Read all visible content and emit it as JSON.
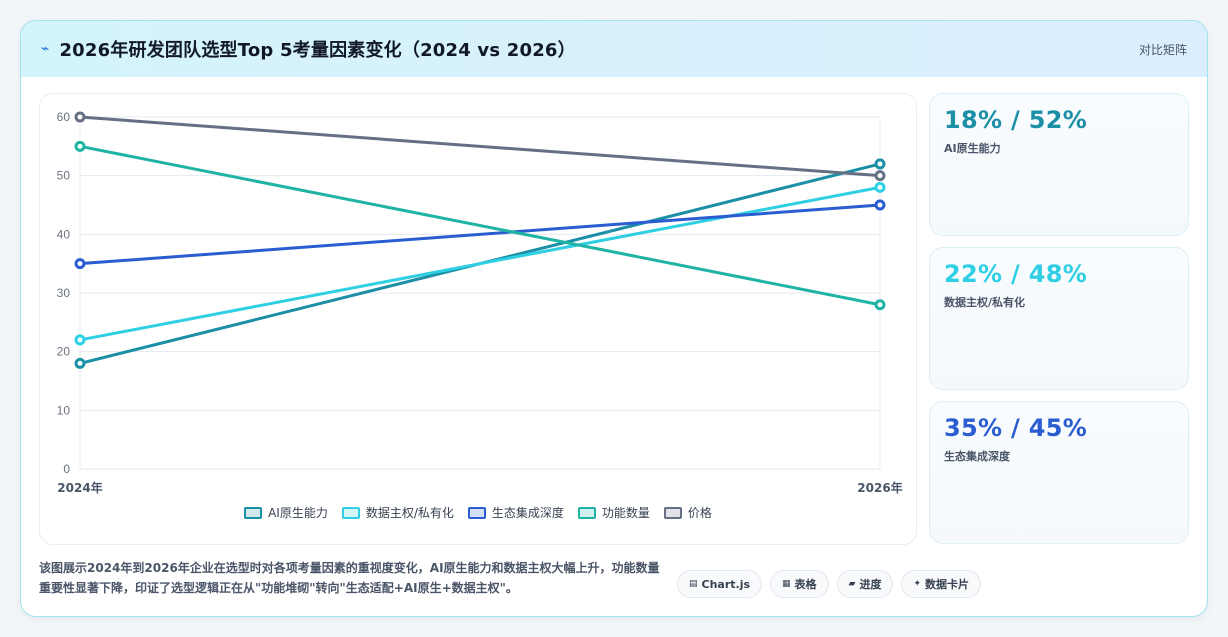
{
  "header": {
    "icon": "bolt-icon",
    "title": "2026年研发团队选型Top 5考量因素变化（2024 vs 2026）",
    "link": "对比矩阵"
  },
  "chart_data": {
    "type": "line",
    "x": [
      "2024年",
      "2026年"
    ],
    "ylim": [
      0,
      60
    ],
    "yticks": [
      0,
      10,
      20,
      30,
      40,
      50,
      60
    ],
    "grid": true,
    "legend_position": "bottom",
    "series": [
      {
        "name": "AI原生能力",
        "values": [
          18,
          52
        ],
        "color": "#1b8fa6"
      },
      {
        "name": "数据主权/私有化",
        "values": [
          22,
          48
        ],
        "color": "#2ecfe3"
      },
      {
        "name": "生态集成深度",
        "values": [
          35,
          45
        ],
        "color": "#2a5dd1"
      },
      {
        "name": "功能数量",
        "values": [
          55,
          28
        ],
        "color": "#1fb3a4"
      },
      {
        "name": "价格",
        "values": [
          60,
          50
        ],
        "color": "#667085"
      }
    ]
  },
  "kpis": [
    {
      "value": "18% / 52%",
      "label": "AI原生能力",
      "color": "#1b8fa6"
    },
    {
      "value": "22% / 48%",
      "label": "数据主权/私有化",
      "color": "#2ecfe3"
    },
    {
      "value": "35% / 45%",
      "label": "生态集成深度",
      "color": "#2a5dd1"
    }
  ],
  "description": "该图展示2024年到2026年企业在选型时对各项考量因素的重视度变化，AI原生能力和数据主权大幅上升，功能数量重要性显著下降，印证了选型逻辑正在从\"功能堆砌\"转向\"生态适配+AI原生+数据主权\"。",
  "chips": [
    {
      "icon": "chart-icon",
      "glyph": "▤",
      "label": "Chart.js"
    },
    {
      "icon": "table-icon",
      "glyph": "▦",
      "label": "表格"
    },
    {
      "icon": "progress-icon",
      "glyph": "▰",
      "label": "进度"
    },
    {
      "icon": "card-icon",
      "glyph": "✦",
      "label": "数据卡片"
    }
  ]
}
